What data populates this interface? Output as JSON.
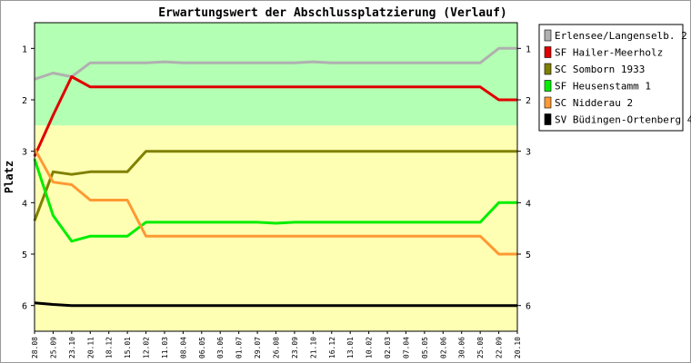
{
  "chart_data": {
    "type": "line",
    "title": "Erwartungswert der Abschlussplatzierung (Verlauf)",
    "ylabel": "Platz",
    "xlabel": "",
    "ylim": [
      0.5,
      6.5
    ],
    "y_inverted": true,
    "y_ticks": [
      "1",
      "2",
      "3",
      "4",
      "5",
      "6"
    ],
    "grid": false,
    "legend_position": "right",
    "bands": [
      {
        "from": 0.5,
        "to": 2.5,
        "color": "#b3ffb3"
      },
      {
        "from": 2.5,
        "to": 6.5,
        "color": "#ffffb3"
      }
    ],
    "x": [
      "28.08",
      "25.09",
      "23.10",
      "20.11",
      "18.12",
      "15.01",
      "12.02",
      "11.03",
      "08.04",
      "06.05",
      "03.06",
      "01.07",
      "29.07",
      "26.08",
      "23.09",
      "21.10",
      "16.12",
      "13.01",
      "10.02",
      "02.03",
      "07.04",
      "05.05",
      "02.06",
      "30.06",
      "25.08",
      "22.09",
      "20.10"
    ],
    "series": [
      {
        "name": "Erlensee/Langenselb. 2",
        "color": "#b0b0b0",
        "values": [
          1.6,
          1.48,
          1.55,
          1.28,
          1.28,
          1.28,
          1.28,
          1.26,
          1.28,
          1.28,
          1.28,
          1.28,
          1.28,
          1.28,
          1.28,
          1.26,
          1.28,
          1.28,
          1.28,
          1.28,
          1.28,
          1.28,
          1.28,
          1.28,
          1.28,
          1.0,
          1.0
        ]
      },
      {
        "name": "SF Hailer-Meerholz",
        "color": "#e00000",
        "values": [
          3.1,
          2.3,
          1.55,
          1.75,
          1.75,
          1.75,
          1.75,
          1.75,
          1.75,
          1.75,
          1.75,
          1.75,
          1.75,
          1.75,
          1.75,
          1.75,
          1.75,
          1.75,
          1.75,
          1.75,
          1.75,
          1.75,
          1.75,
          1.75,
          1.75,
          2.0,
          2.0
        ]
      },
      {
        "name": "SC Somborn 1933",
        "color": "#808000",
        "values": [
          4.35,
          3.4,
          3.45,
          3.4,
          3.4,
          3.4,
          3.0,
          3.0,
          3.0,
          3.0,
          3.0,
          3.0,
          3.0,
          3.0,
          3.0,
          3.0,
          3.0,
          3.0,
          3.0,
          3.0,
          3.0,
          3.0,
          3.0,
          3.0,
          3.0,
          3.0,
          3.0
        ]
      },
      {
        "name": "SF Heusenstamm 1",
        "color": "#00ee00",
        "values": [
          3.15,
          4.25,
          4.75,
          4.65,
          4.65,
          4.65,
          4.38,
          4.38,
          4.38,
          4.38,
          4.38,
          4.38,
          4.38,
          4.4,
          4.38,
          4.38,
          4.38,
          4.38,
          4.38,
          4.38,
          4.38,
          4.38,
          4.38,
          4.38,
          4.38,
          4.0,
          4.0
        ]
      },
      {
        "name": "SC Nidderau 2",
        "color": "#ff9933",
        "values": [
          2.95,
          3.6,
          3.65,
          3.95,
          3.95,
          3.95,
          4.65,
          4.65,
          4.65,
          4.65,
          4.65,
          4.65,
          4.65,
          4.65,
          4.65,
          4.65,
          4.65,
          4.65,
          4.65,
          4.65,
          4.65,
          4.65,
          4.65,
          4.65,
          4.65,
          5.0,
          5.0
        ]
      },
      {
        "name": "SV Büdingen-Ortenberg 4",
        "color": "#000000",
        "values": [
          5.95,
          5.98,
          6.0,
          6.0,
          6.0,
          6.0,
          6.0,
          6.0,
          6.0,
          6.0,
          6.0,
          6.0,
          6.0,
          6.0,
          6.0,
          6.0,
          6.0,
          6.0,
          6.0,
          6.0,
          6.0,
          6.0,
          6.0,
          6.0,
          6.0,
          6.0,
          6.0
        ]
      }
    ]
  }
}
